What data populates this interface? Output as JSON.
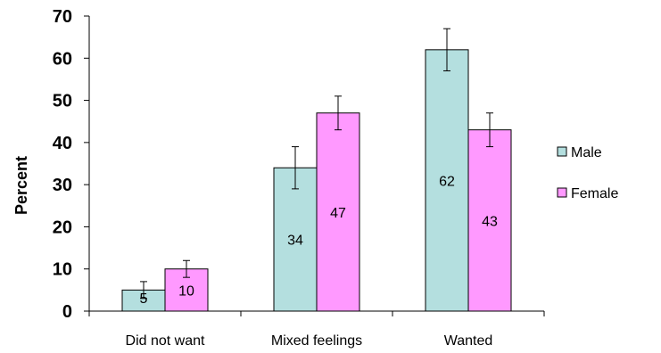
{
  "chart_data": {
    "type": "bar",
    "categories": [
      "Did not want",
      "Mixed feelings",
      "Wanted"
    ],
    "series": [
      {
        "name": "Male",
        "values": [
          5,
          34,
          62
        ],
        "errors": [
          2,
          5,
          5
        ],
        "color": "#b4dfdf"
      },
      {
        "name": "Female",
        "values": [
          10,
          47,
          43
        ],
        "errors": [
          2,
          4,
          4
        ],
        "color": "#ff99ff"
      }
    ],
    "data_labels": [
      [
        "5",
        "34",
        "62"
      ],
      [
        "10",
        "47",
        "43"
      ]
    ],
    "ylabel": "Percent",
    "xlabel": "",
    "ylim": [
      0,
      70
    ],
    "yticks": [
      "0",
      "10",
      "20",
      "30",
      "40",
      "50",
      "60",
      "70"
    ],
    "grid": false,
    "legend": "right",
    "border_color": "#000000"
  }
}
